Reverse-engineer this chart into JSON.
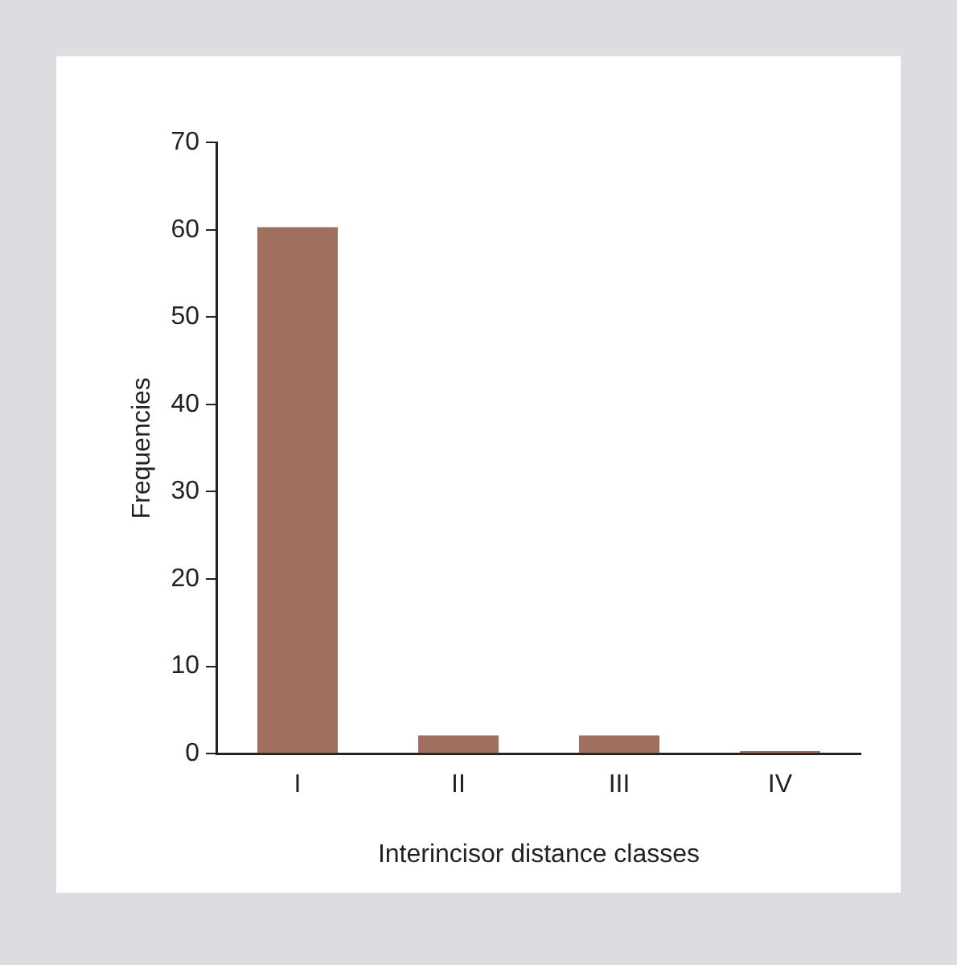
{
  "chart_data": {
    "type": "bar",
    "xlabel": "Interincisor distance classes",
    "ylabel": "Frequencies",
    "categories": [
      "I",
      "II",
      "III",
      "IV"
    ],
    "values": [
      60.3,
      2.1,
      2.1,
      0.3
    ],
    "color": "#a06f60",
    "ylim": [
      0,
      70
    ],
    "yticks": [
      0,
      10,
      20,
      30,
      40,
      50,
      60,
      70
    ],
    "grid": false,
    "legend": false
  }
}
